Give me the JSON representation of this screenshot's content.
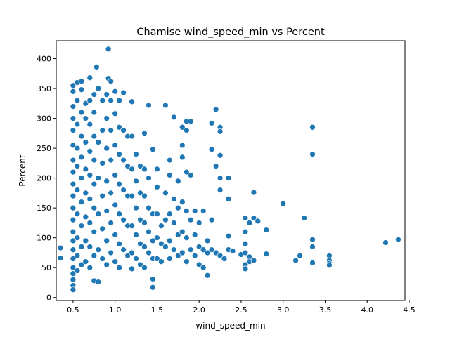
{
  "chart_data": {
    "type": "scatter",
    "title": "Chamise wind_speed_min vs Percent",
    "xlabel": "wind_speed_min",
    "ylabel": "Percent",
    "xlim": [
      0.3,
      4.45
    ],
    "ylim": [
      -5,
      430
    ],
    "xticks": [
      0.5,
      1.0,
      1.5,
      2.0,
      2.5,
      3.0,
      3.5,
      4.0,
      4.5
    ],
    "xtick_labels": [
      "0.5",
      "1.0",
      "1.5",
      "2.0",
      "2.5",
      "3.0",
      "3.5",
      "4.0",
      "4.5"
    ],
    "yticks": [
      0,
      50,
      100,
      150,
      200,
      250,
      300,
      350,
      400
    ],
    "ytick_labels": [
      "0",
      "50",
      "100",
      "150",
      "200",
      "250",
      "300",
      "350",
      "400"
    ],
    "grid": false,
    "marker_color": "#1f77b4",
    "marker_edge_color": "#ffffff",
    "series": [
      {
        "points": [
          [
            0.35,
            83
          ],
          [
            0.35,
            66
          ],
          [
            0.5,
            355
          ],
          [
            0.5,
            345
          ],
          [
            0.5,
            320
          ],
          [
            0.5,
            300
          ],
          [
            0.5,
            280
          ],
          [
            0.5,
            255
          ],
          [
            0.5,
            230
          ],
          [
            0.5,
            210
          ],
          [
            0.5,
            190
          ],
          [
            0.5,
            170
          ],
          [
            0.5,
            150
          ],
          [
            0.5,
            130
          ],
          [
            0.5,
            110
          ],
          [
            0.5,
            95
          ],
          [
            0.5,
            80
          ],
          [
            0.5,
            65
          ],
          [
            0.5,
            50
          ],
          [
            0.5,
            40
          ],
          [
            0.5,
            30
          ],
          [
            0.5,
            20
          ],
          [
            0.5,
            13
          ],
          [
            0.55,
            360
          ],
          [
            0.55,
            330
          ],
          [
            0.55,
            290
          ],
          [
            0.55,
            250
          ],
          [
            0.55,
            220
          ],
          [
            0.55,
            180
          ],
          [
            0.55,
            140
          ],
          [
            0.55,
            100
          ],
          [
            0.55,
            70
          ],
          [
            0.55,
            45
          ],
          [
            0.6,
            362
          ],
          [
            0.6,
            348
          ],
          [
            0.6,
            310
          ],
          [
            0.6,
            270
          ],
          [
            0.6,
            235
          ],
          [
            0.6,
            200
          ],
          [
            0.6,
            160
          ],
          [
            0.6,
            120
          ],
          [
            0.6,
            85
          ],
          [
            0.6,
            55
          ],
          [
            0.65,
            325
          ],
          [
            0.65,
            300
          ],
          [
            0.65,
            260
          ],
          [
            0.65,
            215
          ],
          [
            0.65,
            175
          ],
          [
            0.65,
            135
          ],
          [
            0.65,
            95
          ],
          [
            0.65,
            60
          ],
          [
            0.7,
            368
          ],
          [
            0.7,
            330
          ],
          [
            0.7,
            290
          ],
          [
            0.7,
            245
          ],
          [
            0.7,
            205
          ],
          [
            0.7,
            165
          ],
          [
            0.7,
            125
          ],
          [
            0.7,
            85
          ],
          [
            0.7,
            50
          ],
          [
            0.75,
            340
          ],
          [
            0.75,
            310
          ],
          [
            0.75,
            270
          ],
          [
            0.75,
            230
          ],
          [
            0.75,
            190
          ],
          [
            0.75,
            150
          ],
          [
            0.75,
            110
          ],
          [
            0.75,
            70
          ],
          [
            0.75,
            28
          ],
          [
            0.78,
            386
          ],
          [
            0.8,
            350
          ],
          [
            0.8,
            260
          ],
          [
            0.8,
            200
          ],
          [
            0.8,
            140
          ],
          [
            0.8,
            80
          ],
          [
            0.8,
            26
          ],
          [
            0.85,
            330
          ],
          [
            0.85,
            280
          ],
          [
            0.85,
            225
          ],
          [
            0.85,
            170
          ],
          [
            0.85,
            115
          ],
          [
            0.85,
            65
          ],
          [
            0.9,
            340
          ],
          [
            0.9,
            300
          ],
          [
            0.9,
            250
          ],
          [
            0.9,
            195
          ],
          [
            0.9,
            145
          ],
          [
            0.9,
            95
          ],
          [
            0.9,
            55
          ],
          [
            0.92,
            416
          ],
          [
            0.92,
            367
          ],
          [
            0.95,
            362
          ],
          [
            0.95,
            330
          ],
          [
            0.95,
            280
          ],
          [
            0.95,
            230
          ],
          [
            0.95,
            175
          ],
          [
            0.95,
            125
          ],
          [
            0.95,
            75
          ],
          [
            1.0,
            345
          ],
          [
            1.0,
            308
          ],
          [
            1.0,
            255
          ],
          [
            1.0,
            205
          ],
          [
            1.0,
            155
          ],
          [
            1.0,
            105
          ],
          [
            1.0,
            60
          ],
          [
            1.05,
            330
          ],
          [
            1.05,
            285
          ],
          [
            1.05,
            240
          ],
          [
            1.05,
            190
          ],
          [
            1.05,
            140
          ],
          [
            1.05,
            90
          ],
          [
            1.05,
            50
          ],
          [
            1.1,
            343
          ],
          [
            1.1,
            280
          ],
          [
            1.1,
            230
          ],
          [
            1.1,
            180
          ],
          [
            1.1,
            130
          ],
          [
            1.1,
            80
          ],
          [
            1.15,
            270
          ],
          [
            1.15,
            220
          ],
          [
            1.15,
            170
          ],
          [
            1.15,
            120
          ],
          [
            1.15,
            70
          ],
          [
            1.2,
            328
          ],
          [
            1.2,
            270
          ],
          [
            1.2,
            215
          ],
          [
            1.2,
            170
          ],
          [
            1.2,
            120
          ],
          [
            1.2,
            75
          ],
          [
            1.2,
            48
          ],
          [
            1.25,
            240
          ],
          [
            1.25,
            195
          ],
          [
            1.25,
            150
          ],
          [
            1.25,
            105
          ],
          [
            1.25,
            65
          ],
          [
            1.3,
            220
          ],
          [
            1.3,
            175
          ],
          [
            1.3,
            130
          ],
          [
            1.3,
            90
          ],
          [
            1.3,
            55
          ],
          [
            1.35,
            275
          ],
          [
            1.35,
            215
          ],
          [
            1.35,
            170
          ],
          [
            1.35,
            125
          ],
          [
            1.35,
            85
          ],
          [
            1.35,
            50
          ],
          [
            1.4,
            322
          ],
          [
            1.4,
            200
          ],
          [
            1.4,
            150
          ],
          [
            1.4,
            110
          ],
          [
            1.4,
            75
          ],
          [
            1.45,
            248
          ],
          [
            1.45,
            140
          ],
          [
            1.45,
            95
          ],
          [
            1.45,
            65
          ],
          [
            1.45,
            31
          ],
          [
            1.45,
            17
          ],
          [
            1.5,
            215
          ],
          [
            1.5,
            185
          ],
          [
            1.5,
            140
          ],
          [
            1.5,
            100
          ],
          [
            1.5,
            65
          ],
          [
            1.55,
            120
          ],
          [
            1.55,
            90
          ],
          [
            1.55,
            60
          ],
          [
            1.6,
            322
          ],
          [
            1.6,
            175
          ],
          [
            1.6,
            130
          ],
          [
            1.6,
            85
          ],
          [
            1.65,
            230
          ],
          [
            1.65,
            205
          ],
          [
            1.65,
            140
          ],
          [
            1.65,
            95
          ],
          [
            1.65,
            65
          ],
          [
            1.7,
            302
          ],
          [
            1.7,
            165
          ],
          [
            1.7,
            125
          ],
          [
            1.7,
            80
          ],
          [
            1.75,
            195
          ],
          [
            1.75,
            150
          ],
          [
            1.75,
            105
          ],
          [
            1.75,
            70
          ],
          [
            1.8,
            285
          ],
          [
            1.8,
            255
          ],
          [
            1.8,
            235
          ],
          [
            1.8,
            160
          ],
          [
            1.8,
            110
          ],
          [
            1.8,
            75
          ],
          [
            1.85,
            295
          ],
          [
            1.85,
            280
          ],
          [
            1.85,
            210
          ],
          [
            1.85,
            145
          ],
          [
            1.85,
            100
          ],
          [
            1.85,
            60
          ],
          [
            1.9,
            295
          ],
          [
            1.9,
            205
          ],
          [
            1.9,
            130
          ],
          [
            1.9,
            80
          ],
          [
            1.95,
            145
          ],
          [
            1.95,
            105
          ],
          [
            1.95,
            70
          ],
          [
            2.0,
            125
          ],
          [
            2.0,
            85
          ],
          [
            2.0,
            55
          ],
          [
            2.05,
            145
          ],
          [
            2.05,
            80
          ],
          [
            2.05,
            50
          ],
          [
            2.1,
            95
          ],
          [
            2.1,
            75
          ],
          [
            2.1,
            37
          ],
          [
            2.15,
            292
          ],
          [
            2.15,
            248
          ],
          [
            2.15,
            130
          ],
          [
            2.15,
            80
          ],
          [
            2.2,
            315
          ],
          [
            2.2,
            220
          ],
          [
            2.2,
            75
          ],
          [
            2.25,
            285
          ],
          [
            2.25,
            278
          ],
          [
            2.25,
            238
          ],
          [
            2.25,
            200
          ],
          [
            2.25,
            180
          ],
          [
            2.25,
            70
          ],
          [
            2.3,
            65
          ],
          [
            2.35,
            200
          ],
          [
            2.35,
            165
          ],
          [
            2.35,
            103
          ],
          [
            2.35,
            80
          ],
          [
            2.4,
            78
          ],
          [
            2.5,
            72
          ],
          [
            2.55,
            133
          ],
          [
            2.55,
            110
          ],
          [
            2.55,
            90
          ],
          [
            2.55,
            75
          ],
          [
            2.55,
            55
          ],
          [
            2.55,
            48
          ],
          [
            2.6,
            125
          ],
          [
            2.6,
            68
          ],
          [
            2.6,
            60
          ],
          [
            2.65,
            176
          ],
          [
            2.65,
            133
          ],
          [
            2.65,
            62
          ],
          [
            2.7,
            128
          ],
          [
            2.8,
            113
          ],
          [
            2.8,
            73
          ],
          [
            3.0,
            157
          ],
          [
            3.15,
            62
          ],
          [
            3.2,
            70
          ],
          [
            3.25,
            133
          ],
          [
            3.35,
            285
          ],
          [
            3.35,
            240
          ],
          [
            3.35,
            97
          ],
          [
            3.35,
            85
          ],
          [
            3.35,
            58
          ],
          [
            3.55,
            70
          ],
          [
            3.55,
            62
          ],
          [
            3.55,
            57
          ],
          [
            3.55,
            54
          ],
          [
            4.22,
            92
          ],
          [
            4.37,
            97
          ]
        ]
      }
    ]
  }
}
